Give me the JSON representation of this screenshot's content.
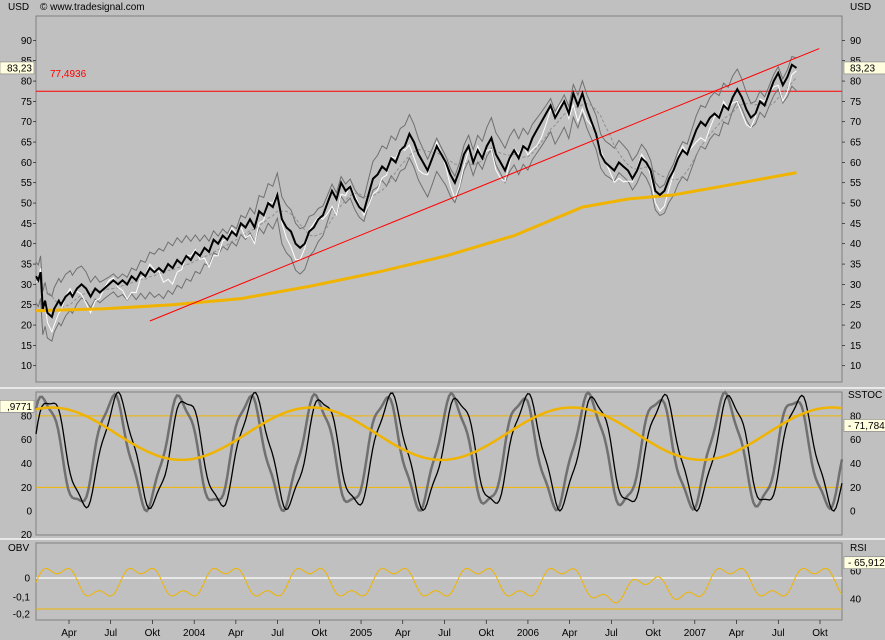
{
  "header": {
    "copyright": "© www.tradesignal.com"
  },
  "panels": {
    "price": {
      "unit_left": "USD",
      "unit_right": "USD",
      "last_value": "83,23",
      "level_label": "77,4936",
      "y_ticks": [
        10,
        15,
        20,
        25,
        30,
        35,
        40,
        45,
        50,
        55,
        60,
        65,
        70,
        75,
        80,
        85,
        90
      ],
      "y_range": [
        6,
        96
      ]
    },
    "sstoc": {
      "label_right": "SSTOC",
      "last_left": ",9771",
      "last_right": "71,784",
      "y_ticks_left": [
        0,
        20,
        40,
        60,
        80
      ],
      "y_ticks_right": [
        0,
        20,
        40,
        60,
        80
      ],
      "bottom_cut_label": "20",
      "y_range": [
        -20,
        100
      ]
    },
    "obv": {
      "label_left": "OBV",
      "label_right": "RSI",
      "last_right": "65,912",
      "y_ticks_left": [
        "0",
        "-0,1",
        "-0,2"
      ],
      "y_ticks_right": [
        40,
        60
      ],
      "rsi_range": [
        25,
        80
      ]
    }
  },
  "x_axis": {
    "labels": [
      "Apr",
      "Jul",
      "Okt",
      "2004",
      "Apr",
      "Jul",
      "Okt",
      "2005",
      "Apr",
      "Jul",
      "Okt",
      "2006",
      "Apr",
      "Jul",
      "Okt",
      "2007",
      "Apr",
      "Jul",
      "Okt"
    ]
  },
  "colors": {
    "background": "#c0c0c0",
    "price": "#000000",
    "ma_yellow": "#f0b400",
    "trendline": "#ff0000",
    "bands": "#707070",
    "white_line": "#ffffff"
  },
  "chart_data": {
    "type": "line",
    "title": "",
    "x_start": "2003-01",
    "x_end": "2007-10",
    "price_series": [
      [
        0.0,
        32
      ],
      [
        0.1,
        31
      ],
      [
        0.2,
        33
      ],
      [
        0.3,
        24
      ],
      [
        0.4,
        26
      ],
      [
        0.5,
        23
      ],
      [
        0.7,
        22
      ],
      [
        0.8,
        24
      ],
      [
        1.0,
        26
      ],
      [
        1.1,
        25
      ],
      [
        1.3,
        27
      ],
      [
        1.5,
        28
      ],
      [
        1.6,
        27
      ],
      [
        1.8,
        29
      ],
      [
        2.0,
        30
      ],
      [
        2.2,
        29
      ],
      [
        2.4,
        27
      ],
      [
        2.6,
        29
      ],
      [
        2.8,
        28
      ],
      [
        3.0,
        29
      ],
      [
        3.2,
        30
      ],
      [
        3.4,
        31
      ],
      [
        3.6,
        30
      ],
      [
        3.8,
        31
      ],
      [
        4.0,
        30
      ],
      [
        4.2,
        32
      ],
      [
        4.4,
        31
      ],
      [
        4.6,
        33
      ],
      [
        4.8,
        32
      ],
      [
        5.0,
        34
      ],
      [
        5.2,
        33
      ],
      [
        5.4,
        34
      ],
      [
        5.6,
        33
      ],
      [
        5.8,
        35
      ],
      [
        6.0,
        34
      ],
      [
        6.2,
        36
      ],
      [
        6.4,
        35
      ],
      [
        6.6,
        37
      ],
      [
        6.8,
        36
      ],
      [
        7.0,
        38
      ],
      [
        7.2,
        37
      ],
      [
        7.4,
        39
      ],
      [
        7.6,
        38
      ],
      [
        7.8,
        41
      ],
      [
        8.0,
        40
      ],
      [
        8.2,
        42
      ],
      [
        8.4,
        41
      ],
      [
        8.6,
        43
      ],
      [
        8.8,
        42
      ],
      [
        9.0,
        45
      ],
      [
        9.2,
        44
      ],
      [
        9.4,
        46
      ],
      [
        9.6,
        44
      ],
      [
        9.8,
        48
      ],
      [
        10.0,
        47
      ],
      [
        10.2,
        50
      ],
      [
        10.4,
        49
      ],
      [
        10.6,
        52
      ],
      [
        10.8,
        46
      ],
      [
        11.0,
        44
      ],
      [
        11.2,
        43
      ],
      [
        11.4,
        40
      ],
      [
        11.6,
        39
      ],
      [
        11.8,
        40
      ],
      [
        12.0,
        43
      ],
      [
        12.2,
        44
      ],
      [
        12.4,
        46
      ],
      [
        12.6,
        47
      ],
      [
        12.8,
        50
      ],
      [
        13.0,
        53
      ],
      [
        13.2,
        51
      ],
      [
        13.4,
        55
      ],
      [
        13.6,
        53
      ],
      [
        13.8,
        54
      ],
      [
        14.0,
        51
      ],
      [
        14.2,
        49
      ],
      [
        14.4,
        48
      ],
      [
        14.6,
        52
      ],
      [
        14.8,
        56
      ],
      [
        15.0,
        57
      ],
      [
        15.2,
        59
      ],
      [
        15.4,
        58
      ],
      [
        15.6,
        61
      ],
      [
        15.8,
        60
      ],
      [
        16.0,
        63
      ],
      [
        16.2,
        64
      ],
      [
        16.4,
        67
      ],
      [
        16.6,
        65
      ],
      [
        16.8,
        62
      ],
      [
        17.0,
        60
      ],
      [
        17.2,
        58
      ],
      [
        17.4,
        61
      ],
      [
        17.6,
        64
      ],
      [
        17.8,
        62
      ],
      [
        18.0,
        60
      ],
      [
        18.2,
        57
      ],
      [
        18.4,
        55
      ],
      [
        18.6,
        58
      ],
      [
        18.8,
        62
      ],
      [
        19.0,
        64
      ],
      [
        19.2,
        60
      ],
      [
        19.4,
        63
      ],
      [
        19.6,
        61
      ],
      [
        19.8,
        64
      ],
      [
        20.0,
        66
      ],
      [
        20.2,
        62
      ],
      [
        20.4,
        60
      ],
      [
        20.6,
        58
      ],
      [
        20.8,
        61
      ],
      [
        21.0,
        63
      ],
      [
        21.2,
        61
      ],
      [
        21.4,
        64
      ],
      [
        21.6,
        63
      ],
      [
        21.8,
        66
      ],
      [
        22.0,
        68
      ],
      [
        22.2,
        70
      ],
      [
        22.4,
        72
      ],
      [
        22.6,
        74
      ],
      [
        22.8,
        71
      ],
      [
        23.0,
        73
      ],
      [
        23.2,
        75
      ],
      [
        23.4,
        72
      ],
      [
        23.6,
        77
      ],
      [
        23.8,
        74
      ],
      [
        24.0,
        77
      ],
      [
        24.2,
        73
      ],
      [
        24.4,
        70
      ],
      [
        24.6,
        67
      ],
      [
        24.8,
        62
      ],
      [
        25.0,
        60
      ],
      [
        25.2,
        59
      ],
      [
        25.4,
        58
      ],
      [
        25.6,
        60
      ],
      [
        25.8,
        59
      ],
      [
        26.0,
        58
      ],
      [
        26.2,
        56
      ],
      [
        26.4,
        58
      ],
      [
        26.6,
        61
      ],
      [
        26.8,
        60
      ],
      [
        27.0,
        58
      ],
      [
        27.2,
        53
      ],
      [
        27.4,
        52
      ],
      [
        27.6,
        53
      ],
      [
        27.8,
        56
      ],
      [
        28.0,
        58
      ],
      [
        28.2,
        61
      ],
      [
        28.4,
        63
      ],
      [
        28.6,
        62
      ],
      [
        28.8,
        65
      ],
      [
        29.0,
        68
      ],
      [
        29.2,
        70
      ],
      [
        29.4,
        69
      ],
      [
        29.6,
        71
      ],
      [
        29.8,
        72
      ],
      [
        30.0,
        71
      ],
      [
        30.2,
        74
      ],
      [
        30.4,
        73
      ],
      [
        30.6,
        76
      ],
      [
        30.8,
        78
      ],
      [
        31.0,
        76
      ],
      [
        31.2,
        73
      ],
      [
        31.4,
        71
      ],
      [
        31.6,
        72
      ],
      [
        31.8,
        75
      ],
      [
        32.0,
        74
      ],
      [
        32.2,
        77
      ],
      [
        32.4,
        80
      ],
      [
        32.6,
        82
      ],
      [
        32.8,
        79
      ],
      [
        33.0,
        81
      ],
      [
        33.2,
        84
      ],
      [
        33.4,
        83.23
      ]
    ],
    "ma_series": [
      [
        0,
        23.5
      ],
      [
        3,
        24
      ],
      [
        6,
        25
      ],
      [
        9,
        26.5
      ],
      [
        12,
        29.5
      ],
      [
        15,
        33
      ],
      [
        18,
        37
      ],
      [
        21,
        42
      ],
      [
        24,
        49
      ],
      [
        26,
        51
      ],
      [
        28,
        52
      ],
      [
        30,
        54
      ],
      [
        33.4,
        57.5
      ]
    ],
    "trendline": [
      [
        5.0,
        21
      ],
      [
        34.4,
        88
      ]
    ],
    "horizontal_level": 77.4936
  }
}
